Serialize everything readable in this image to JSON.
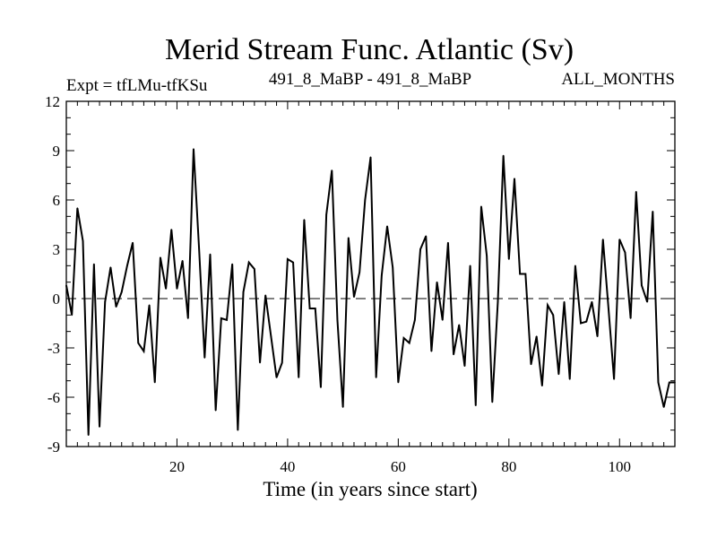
{
  "chart_data": {
    "type": "line",
    "title": "Merid Stream Func. Atlantic (Sv)",
    "subtitle_left": "Expt = tfLMu-tfKSu",
    "subtitle_center": "491_8_MaBP - 491_8_MaBP",
    "subtitle_right": "ALL_MONTHS",
    "xlabel": "Time (in years since start)",
    "ylabel": "",
    "xlim": [
      0,
      110
    ],
    "ylim": [
      -9,
      12
    ],
    "xticks": [
      20,
      40,
      60,
      80,
      100
    ],
    "yticks": [
      -9,
      -6,
      -3,
      0,
      3,
      6,
      9,
      12
    ],
    "reference_line": 0,
    "legend": "none",
    "grid": false,
    "series": [
      {
        "name": "Merid Stream Func. Atlantic",
        "color": "#000000",
        "x": [
          0,
          1,
          2,
          3,
          4,
          5,
          6,
          7,
          8,
          9,
          10,
          11,
          12,
          13,
          14,
          15,
          16,
          17,
          18,
          19,
          20,
          21,
          22,
          23,
          24,
          25,
          26,
          27,
          28,
          29,
          30,
          31,
          32,
          33,
          34,
          35,
          36,
          37,
          38,
          39,
          40,
          41,
          42,
          43,
          44,
          45,
          46,
          47,
          48,
          49,
          50,
          51,
          52,
          53,
          54,
          55,
          56,
          57,
          58,
          59,
          60,
          61,
          62,
          63,
          64,
          65,
          66,
          67,
          68,
          69,
          70,
          71,
          72,
          73,
          74,
          75,
          76,
          77,
          78,
          79,
          80,
          81,
          82,
          83,
          84,
          85,
          86,
          87,
          88,
          89,
          90,
          91,
          92,
          93,
          94,
          95,
          96,
          97,
          98,
          99,
          100,
          101,
          102,
          103,
          104,
          105,
          106,
          107,
          108,
          109,
          110
        ],
        "values": [
          0.8,
          -1.0,
          5.5,
          3.5,
          -8.3,
          2.1,
          -7.8,
          -0.2,
          1.9,
          -0.5,
          0.4,
          2.0,
          3.4,
          -2.7,
          -3.2,
          -0.4,
          -5.1,
          2.5,
          0.6,
          4.2,
          0.6,
          2.3,
          -1.2,
          9.1,
          3.0,
          -3.6,
          2.7,
          -6.8,
          -1.2,
          -1.3,
          2.1,
          -8.0,
          0.4,
          2.2,
          1.8,
          -3.9,
          0.2,
          -2.3,
          -4.8,
          -3.9,
          2.4,
          2.2,
          -4.8,
          4.8,
          -0.6,
          -0.6,
          -5.4,
          5.1,
          7.8,
          -1.3,
          -6.6,
          3.7,
          0.1,
          1.6,
          6.0,
          8.6,
          -4.8,
          1.4,
          4.4,
          1.9,
          -5.1,
          -2.4,
          -2.7,
          -1.3,
          3.0,
          3.8,
          -3.2,
          1.0,
          -1.3,
          3.4,
          -3.4,
          -1.6,
          -4.1,
          2.0,
          -6.5,
          5.6,
          2.6,
          -6.3,
          -0.2,
          8.7,
          2.4,
          7.3,
          1.5,
          1.5,
          -4.0,
          -2.3,
          -5.3,
          -0.4,
          -1.0,
          -4.6,
          -0.2,
          -4.9,
          2.0,
          -1.5,
          -1.4,
          -0.2,
          -2.3,
          3.6,
          -0.6,
          -4.9,
          3.6,
          2.8,
          -1.2,
          6.5,
          0.8,
          -0.2,
          5.3,
          -5.1,
          -6.6,
          -5.1,
          -5.1
        ]
      }
    ]
  }
}
